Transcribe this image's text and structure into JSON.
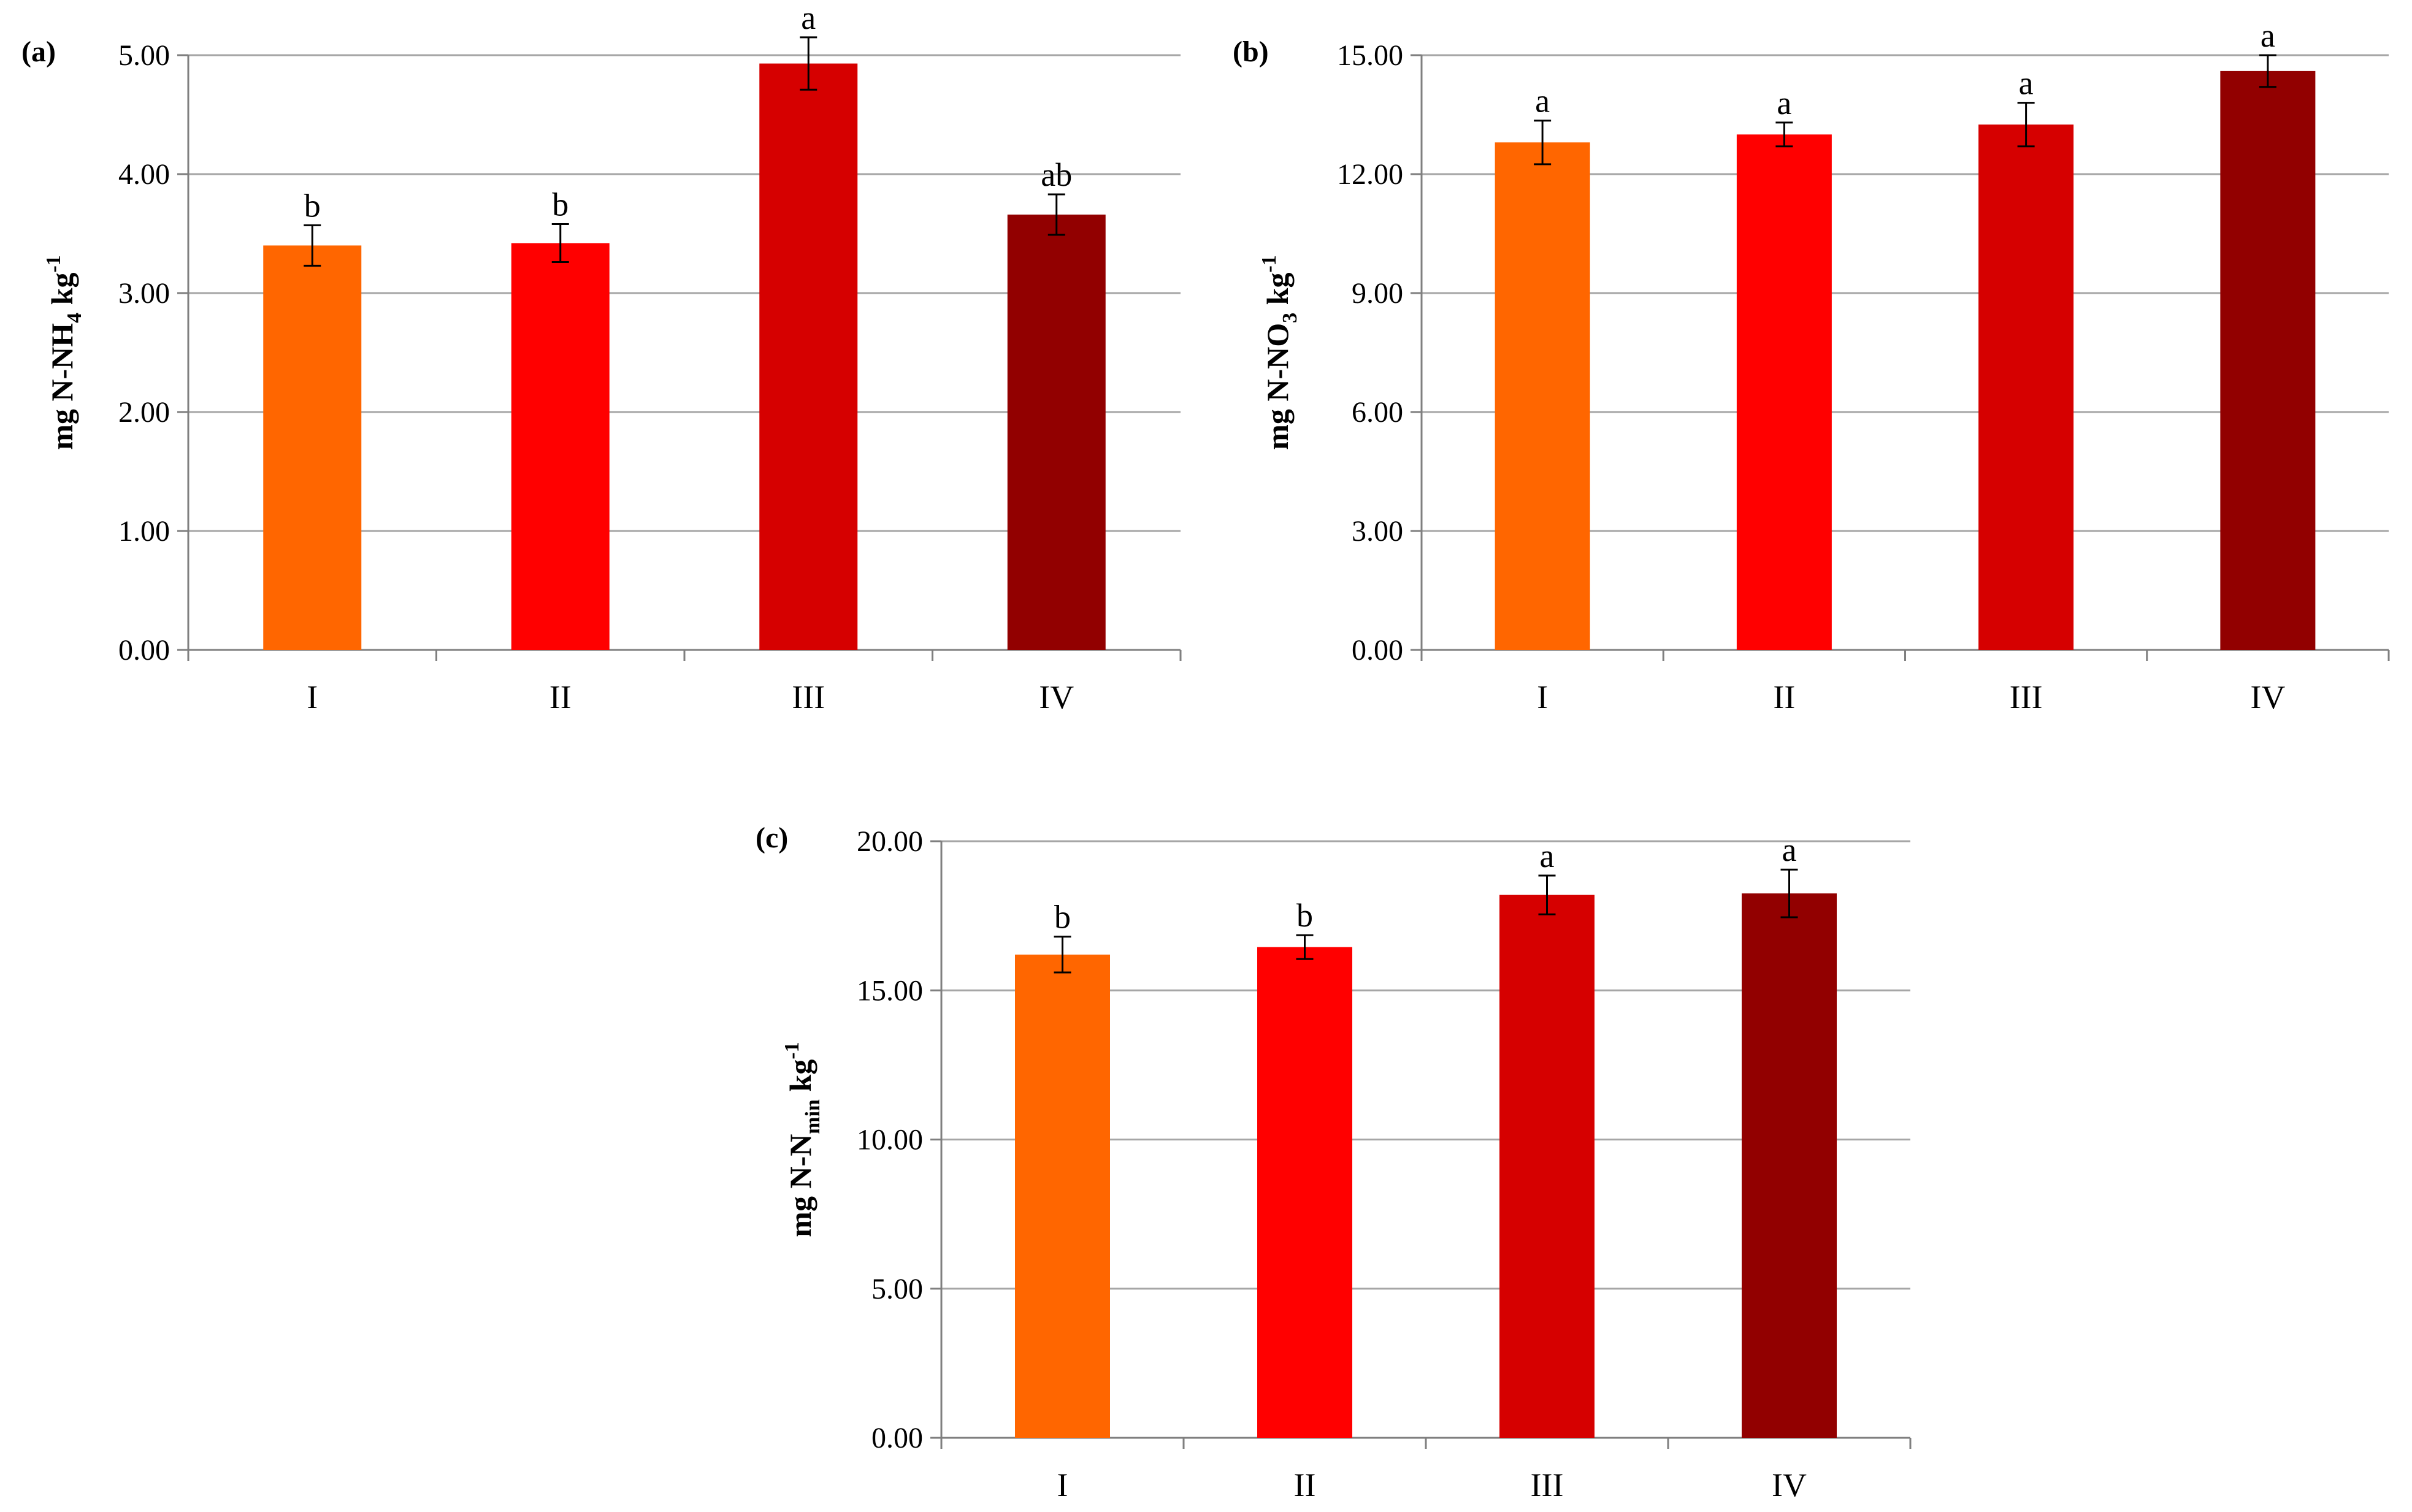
{
  "colors": [
    "#ff6600",
    "#ff0000",
    "#d60000",
    "#920000"
  ],
  "chart_data": [
    {
      "type": "bar",
      "panel": "(a)",
      "categories": [
        "I",
        "II",
        "III",
        "IV"
      ],
      "values": [
        3.4,
        3.42,
        4.93,
        3.66
      ],
      "errors": [
        0.17,
        0.16,
        0.22,
        0.17
      ],
      "letters": [
        "b",
        "b",
        "a",
        "ab"
      ],
      "ylabel": {
        "main": "mg N-NH",
        "sub": "4",
        "unit": " kg",
        "sup": "-1"
      },
      "ylim": [
        0,
        5
      ],
      "yticks": [
        "0.00",
        "1.00",
        "2.00",
        "3.00",
        "4.00",
        "5.00"
      ],
      "ytick_values": [
        0,
        1,
        2,
        3,
        4,
        5
      ]
    },
    {
      "type": "bar",
      "panel": "(b)",
      "categories": [
        "I",
        "II",
        "III",
        "IV"
      ],
      "values": [
        12.8,
        13.0,
        13.25,
        14.6
      ],
      "errors": [
        0.55,
        0.3,
        0.55,
        0.4
      ],
      "letters": [
        "a",
        "a",
        "a",
        "a"
      ],
      "ylabel": {
        "main": "mg N-NO",
        "sub": "3",
        "unit": " kg",
        "sup": "-1"
      },
      "ylim": [
        0,
        15
      ],
      "yticks": [
        "0.00",
        "3.00",
        "6.00",
        "9.00",
        "12.00",
        "15.00"
      ],
      "ytick_values": [
        0,
        3,
        6,
        9,
        12,
        15
      ]
    },
    {
      "type": "bar",
      "panel": "(c)",
      "categories": [
        "I",
        "II",
        "III",
        "IV"
      ],
      "values": [
        16.2,
        16.45,
        18.2,
        18.25
      ],
      "errors": [
        0.6,
        0.4,
        0.65,
        0.8
      ],
      "letters": [
        "b",
        "b",
        "a",
        "a"
      ],
      "ylabel": {
        "main": "mg N-N",
        "sub": "min",
        "unit": " kg",
        "sup": "-1"
      },
      "ylim": [
        0,
        20
      ],
      "yticks": [
        "0.00",
        "5.00",
        "10.00",
        "15.00",
        "20.00"
      ],
      "ytick_values": [
        0,
        5,
        10,
        15,
        20
      ]
    }
  ]
}
